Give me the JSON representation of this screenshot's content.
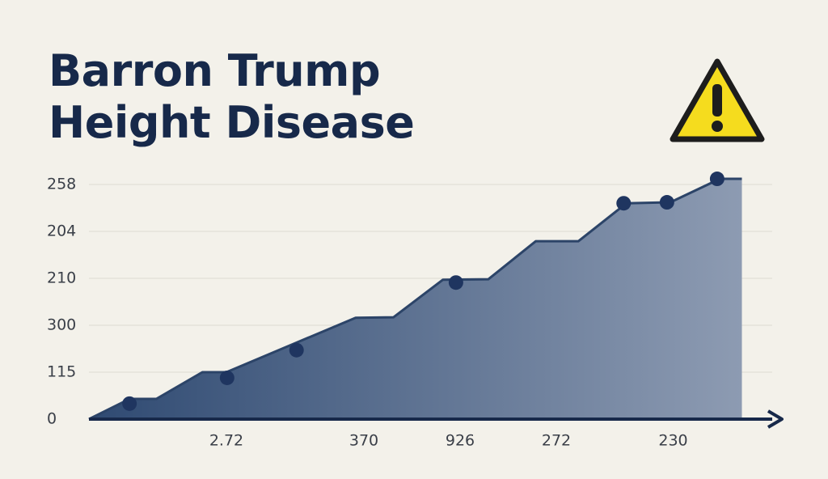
{
  "chart_data": {
    "type": "area",
    "title": "Barron Trump Height Disease",
    "x": [
      0,
      5.9,
      9.8,
      16.5,
      20,
      38.8,
      44.3,
      51.5,
      58.1,
      65,
      71.2,
      78.2,
      84.6,
      91.8,
      95
    ],
    "values": [
      0,
      0.43,
      0.43,
      1,
      1,
      2.16,
      2.17,
      2.97,
      2.98,
      3.79,
      3.79,
      4.6,
      4.62,
      5.12,
      5.12
    ],
    "markers": {
      "x": [
        5.9,
        20.1,
        30.2,
        53.4,
        77.8,
        84.1,
        91.4
      ],
      "values": [
        0.33,
        0.88,
        1.47,
        2.91,
        4.6,
        4.62,
        5.12
      ]
    },
    "color": "#2c4468",
    "xlim": [
      0,
      100
    ],
    "xticks": [
      {
        "value": 20,
        "label": "2.72"
      },
      {
        "value": 40,
        "label": "370"
      },
      {
        "value": 54,
        "label": "926"
      },
      {
        "value": 68,
        "label": "272"
      },
      {
        "value": 85,
        "label": "230"
      }
    ],
    "ylim": [
      0,
      5.5
    ],
    "yticks": [
      {
        "value": 0,
        "label": "0"
      },
      {
        "value": 1,
        "label": "115"
      },
      {
        "value": 2,
        "label": "300"
      },
      {
        "value": 3,
        "label": "210"
      },
      {
        "value": 4,
        "label": "204"
      },
      {
        "value": 5,
        "label": "258"
      }
    ],
    "grid": true
  }
}
